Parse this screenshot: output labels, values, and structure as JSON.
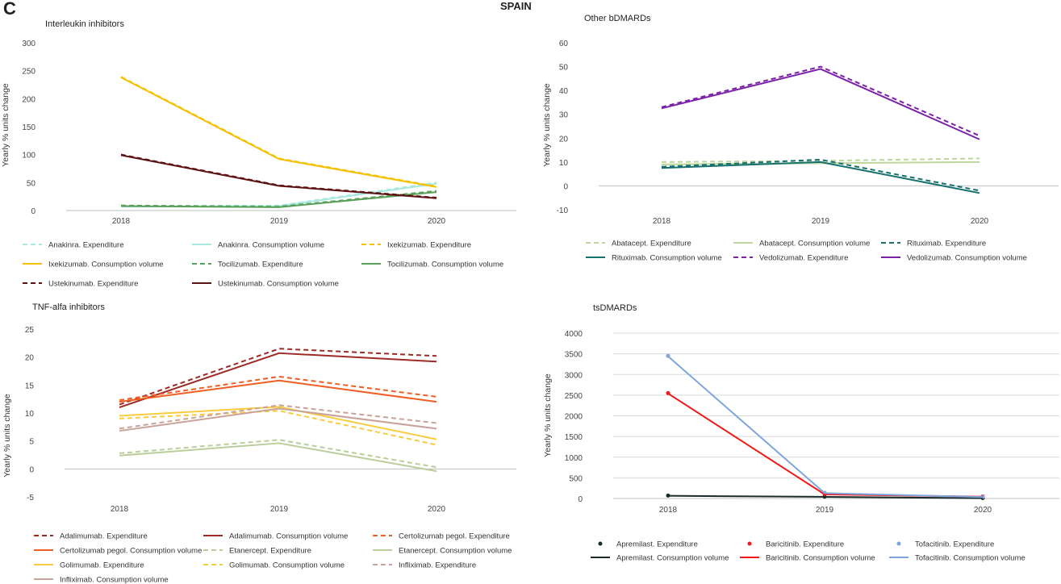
{
  "figure": {
    "letter": "C",
    "country": "SPAIN"
  },
  "colors": {
    "anakinra": "#a8e8e0",
    "ixekizumab": "#f5c000",
    "tocilizumab": "#5aa05a",
    "ustekinumab": "#5c1212",
    "abatacept": "#bcd69c",
    "rituximab": "#16706e",
    "vedolizumab": "#7b22a8",
    "adalimumab": "#9e2a26",
    "certolizumab": "#ef5e22",
    "etanercept": "#b9ce9a",
    "golimumab": "#f9cb3e",
    "infliximab": "#c9a299",
    "apremilast": "#1a2a2a",
    "baricitinib": "#f01818",
    "tofacitinib": "#7ea6dc",
    "axis": "#555555",
    "grid": "#d9d9d9"
  },
  "chart_data": [
    {
      "id": "interleukin",
      "type": "line",
      "title": "Interleukin inhibitors",
      "xlabel": "",
      "ylabel": "Yearly % units change",
      "categories": [
        "2018",
        "2019",
        "2020"
      ],
      "yticks": [
        0,
        50,
        100,
        150,
        200,
        250,
        300
      ],
      "ylim": [
        0,
        300
      ],
      "grid": "none",
      "legend": "bottom",
      "series": [
        {
          "name": "Anakinra. Expenditure",
          "color": "#a8e8e0",
          "dash": true,
          "marker": false,
          "values": [
            8,
            9,
            50
          ]
        },
        {
          "name": "Anakinra. Consumption volume",
          "color": "#a8e8e0",
          "dash": false,
          "marker": false,
          "values": [
            7,
            8,
            48
          ]
        },
        {
          "name": "Ixekizumab. Expenditure",
          "color": "#f5c000",
          "dash": true,
          "marker": false,
          "values": [
            239,
            93,
            43
          ]
        },
        {
          "name": "Ixekizumab. Consumption volume",
          "color": "#f5c000",
          "dash": false,
          "marker": false,
          "values": [
            238,
            92,
            42
          ]
        },
        {
          "name": "Tocilizumab. Expenditure",
          "color": "#5aa05a",
          "dash": true,
          "marker": false,
          "values": [
            9,
            7,
            35
          ]
        },
        {
          "name": "Tocilizumab. Consumption volume",
          "color": "#5aa05a",
          "dash": false,
          "marker": false,
          "values": [
            8,
            6,
            33
          ]
        },
        {
          "name": "Ustekinumab. Expenditure",
          "color": "#5c1212",
          "dash": true,
          "marker": false,
          "values": [
            100,
            45,
            23
          ]
        },
        {
          "name": "Ustekinumab. Consumption volume",
          "color": "#5c1212",
          "dash": false,
          "marker": false,
          "values": [
            99,
            44,
            22
          ]
        }
      ]
    },
    {
      "id": "other-bdmards",
      "type": "line",
      "title": "Other bDMARDs",
      "xlabel": "",
      "ylabel": "Yearly % units change",
      "categories": [
        "2018",
        "2019",
        "2020"
      ],
      "yticks": [
        -10,
        0,
        10,
        20,
        30,
        40,
        50,
        60
      ],
      "ylim": [
        -10,
        60
      ],
      "grid": "none",
      "legend": "bottom",
      "series": [
        {
          "name": "Abatacept. Expenditure",
          "color": "#bcd69c",
          "dash": true,
          "marker": false,
          "values": [
            10,
            10.5,
            11.5
          ]
        },
        {
          "name": "Abatacept. Consumption volume",
          "color": "#bcd69c",
          "dash": false,
          "marker": false,
          "values": [
            9,
            9.5,
            10
          ]
        },
        {
          "name": "Rituximab. Expenditure",
          "color": "#16706e",
          "dash": true,
          "marker": false,
          "values": [
            8,
            11,
            -2
          ]
        },
        {
          "name": "Rituximab. Consumption volume",
          "color": "#16706e",
          "dash": false,
          "marker": false,
          "values": [
            7.5,
            10,
            -3
          ]
        },
        {
          "name": "Vedolizumab. Expenditure",
          "color": "#7b22a8",
          "dash": true,
          "marker": false,
          "values": [
            33,
            50,
            21
          ]
        },
        {
          "name": "Vedolizumab. Consumption volume",
          "color": "#7b22a8",
          "dash": false,
          "marker": false,
          "values": [
            32.5,
            49,
            19.5
          ]
        }
      ]
    },
    {
      "id": "tnf",
      "type": "line",
      "title": "TNF-alfa inhibitors",
      "xlabel": "",
      "ylabel": "Yearly % units change",
      "categories": [
        "2018",
        "2019",
        "2020"
      ],
      "yticks": [
        -5,
        0,
        5,
        10,
        15,
        20,
        25
      ],
      "ylim": [
        -5,
        25
      ],
      "grid": "none",
      "legend": "bottom",
      "series": [
        {
          "name": "Adalimumab. Expenditure",
          "color": "#9e2a26",
          "dash": true,
          "marker": false,
          "values": [
            11.5,
            21.5,
            20.2
          ]
        },
        {
          "name": "Adalimumab. Consumption volume",
          "color": "#9e2a26",
          "dash": false,
          "marker": false,
          "values": [
            11,
            20.7,
            19.2
          ]
        },
        {
          "name": "Certolizumab pegol. Expenditure",
          "color": "#ef5e22",
          "dash": true,
          "marker": false,
          "values": [
            12.3,
            16.5,
            12.9
          ]
        },
        {
          "name": "Certolizumab pegol. Consumption volume",
          "color": "#ef5e22",
          "dash": false,
          "marker": false,
          "values": [
            12,
            15.8,
            12
          ]
        },
        {
          "name": "Etanercept. Expenditure",
          "color": "#b9ce9a",
          "dash": true,
          "marker": false,
          "values": [
            2.8,
            5.2,
            0.3
          ]
        },
        {
          "name": "Etanercept. Consumption volume",
          "color": "#b9ce9a",
          "dash": false,
          "marker": false,
          "values": [
            2.4,
            4.6,
            -0.4
          ]
        },
        {
          "name": "Golimumab. Expenditure",
          "color": "#f9cb3e",
          "dash": false,
          "marker": false,
          "values": [
            9.5,
            11.1,
            5.3
          ]
        },
        {
          "name": "Golimumab. Consumption volume",
          "color": "#f9cb3e",
          "dash": true,
          "marker": false,
          "values": [
            9,
            10.4,
            4.3
          ]
        },
        {
          "name": "Infliximab. Expenditure",
          "color": "#c9a299",
          "dash": true,
          "marker": false,
          "values": [
            7.2,
            11.4,
            8.2
          ]
        },
        {
          "name": "Infliximab. Consumption volume",
          "color": "#c9a299",
          "dash": false,
          "marker": false,
          "values": [
            6.8,
            10.8,
            7.2
          ]
        }
      ]
    },
    {
      "id": "tsdmards",
      "type": "line",
      "title": "tsDMARDs",
      "xlabel": "",
      "ylabel": "Yearly % units change",
      "categories": [
        "2018",
        "2019",
        "2020"
      ],
      "yticks": [
        0,
        500,
        1000,
        1500,
        2000,
        2500,
        3000,
        3500,
        4000
      ],
      "ylim": [
        0,
        4000
      ],
      "grid": "horizontal",
      "legend": "bottom",
      "series": [
        {
          "name": "Apremilast. Expenditure",
          "color": "#1a2a2a",
          "dash": false,
          "marker": true,
          "markerOnly": true,
          "values": [
            70,
            45,
            10
          ]
        },
        {
          "name": "Baricitinib. Expenditure",
          "color": "#f01818",
          "dash": false,
          "marker": true,
          "markerOnly": true,
          "values": [
            2550,
            110,
            50
          ]
        },
        {
          "name": "Tofacitinib. Expenditure",
          "color": "#7ea6dc",
          "dash": false,
          "marker": true,
          "markerOnly": true,
          "values": [
            3450,
            140,
            40
          ]
        },
        {
          "name": "Apremilast. Consumption volume",
          "color": "#1a2a2a",
          "dash": false,
          "marker": false,
          "values": [
            65,
            40,
            8
          ]
        },
        {
          "name": "Baricitinib. Consumption volume",
          "color": "#f01818",
          "dash": false,
          "marker": false,
          "values": [
            2540,
            100,
            45
          ]
        },
        {
          "name": "Tofacitinib. Consumption volume",
          "color": "#7ea6dc",
          "dash": false,
          "marker": false,
          "values": [
            3440,
            130,
            35
          ]
        }
      ]
    }
  ]
}
